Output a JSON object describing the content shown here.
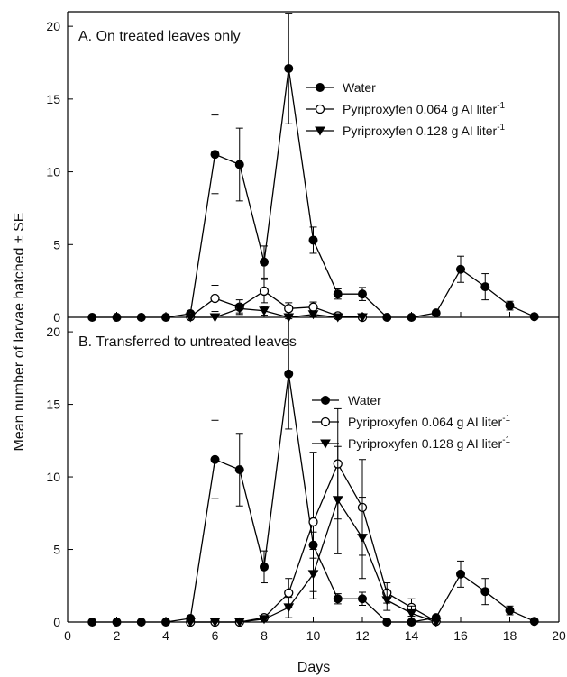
{
  "chart_data": {
    "type": "line",
    "xlabel": "Days",
    "ylabel": "Mean number of larvae hatched ± SE",
    "xlim": [
      0,
      20
    ],
    "xticks": [
      "0",
      "2",
      "4",
      "6",
      "8",
      "10",
      "12",
      "14",
      "16",
      "18",
      "20"
    ],
    "ylim": [
      0,
      21
    ],
    "yticks": [
      "0",
      "5",
      "10",
      "15",
      "20"
    ],
    "grid": false,
    "panels": [
      {
        "title": "A.  On treated leaves only",
        "legend": {
          "placement": "top-right",
          "entries": [
            {
              "prefix": "Water",
              "sup": "",
              "marker": "filled-circle"
            },
            {
              "prefix": "Pyriproxyfen 0.064 g AI liter",
              "sup": "-1",
              "marker": "open-circle"
            },
            {
              "prefix": "Pyriproxyfen 0.128 g AI liter",
              "sup": "-1",
              "marker": "filled-triangle-down"
            }
          ]
        },
        "series": [
          {
            "marker": "filled-circle",
            "x": [
              1,
              2,
              3,
              4,
              5,
              6,
              7,
              8,
              9,
              10,
              11,
              12,
              13,
              14,
              15,
              16,
              17,
              18,
              19
            ],
            "y": [
              0,
              0,
              0,
              0,
              0.25,
              11.2,
              10.5,
              3.8,
              17.1,
              5.3,
              1.6,
              1.6,
              0,
              0,
              0.3,
              3.3,
              2.1,
              0.8,
              0.05
            ],
            "se": [
              0,
              0,
              0,
              0,
              0.1,
              2.7,
              2.5,
              1.1,
              3.8,
              0.9,
              0.35,
              0.45,
              0,
              0,
              0.1,
              0.9,
              0.9,
              0.3,
              0
            ]
          },
          {
            "marker": "open-circle",
            "x": [
              5,
              6,
              7,
              8,
              9,
              10,
              11,
              12
            ],
            "y": [
              0.05,
              1.3,
              0.7,
              1.8,
              0.6,
              0.7,
              0.1,
              0
            ],
            "se": [
              0,
              0.9,
              0.5,
              0.8,
              0.4,
              0.35,
              0.1,
              0
            ]
          },
          {
            "marker": "filled-triangle-down",
            "x": [
              5,
              6,
              7,
              8,
              9,
              10,
              11,
              12
            ],
            "y": [
              0,
              0,
              0.6,
              0.45,
              0,
              0.2,
              0,
              0
            ],
            "se": [
              0,
              0,
              0.3,
              0.3,
              0,
              0.15,
              0,
              0
            ]
          }
        ]
      },
      {
        "title": "B.  Transferred to untreated leaves",
        "legend": {
          "placement": "top-right",
          "entries": [
            {
              "prefix": "Water",
              "sup": "",
              "marker": "filled-circle"
            },
            {
              "prefix": "Pyriproxyfen 0.064 g AI liter",
              "sup": "-1",
              "marker": "open-circle"
            },
            {
              "prefix": "Pyriproxyfen 0.128 g AI liter",
              "sup": "-1",
              "marker": "filled-triangle-down"
            }
          ]
        },
        "series": [
          {
            "marker": "filled-circle",
            "x": [
              1,
              2,
              3,
              4,
              5,
              6,
              7,
              8,
              9,
              10,
              11,
              12,
              13,
              14,
              15,
              16,
              17,
              18,
              19
            ],
            "y": [
              0,
              0,
              0,
              0,
              0.25,
              11.2,
              10.5,
              3.8,
              17.1,
              5.3,
              1.6,
              1.6,
              0,
              0,
              0.3,
              3.3,
              2.1,
              0.8,
              0.05
            ],
            "se": [
              0,
              0,
              0,
              0,
              0.1,
              2.7,
              2.5,
              1.1,
              3.8,
              0.9,
              0.35,
              0.45,
              0,
              0,
              0.1,
              0.9,
              0.9,
              0.3,
              0
            ]
          },
          {
            "marker": "open-circle",
            "x": [
              5,
              6,
              7,
              8,
              9,
              10,
              11,
              12,
              13,
              14,
              15
            ],
            "y": [
              0,
              0,
              0,
              0.3,
              2.0,
              6.9,
              10.9,
              7.9,
              2.0,
              1.0,
              0.05
            ],
            "se": [
              0,
              0,
              0,
              0.2,
              1.0,
              4.8,
              3.8,
              3.3,
              0.7,
              0.6,
              0
            ]
          },
          {
            "marker": "filled-triangle-down",
            "x": [
              5,
              6,
              7,
              8,
              9,
              10,
              11,
              12,
              13,
              14,
              15
            ],
            "y": [
              0,
              0,
              0,
              0.2,
              1.0,
              3.3,
              8.4,
              5.8,
              1.5,
              0.6,
              0
            ],
            "se": [
              0,
              0,
              0,
              0.1,
              0.7,
              1.7,
              3.7,
              2.8,
              0.7,
              0.5,
              0
            ]
          }
        ]
      }
    ]
  }
}
